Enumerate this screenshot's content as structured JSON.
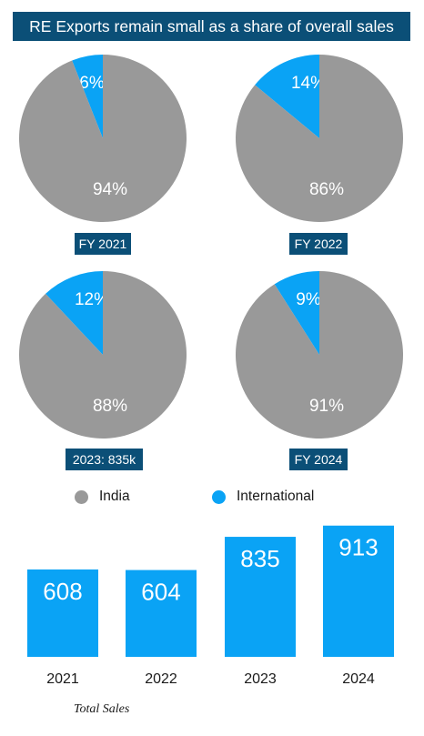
{
  "title": "RE Exports remain small as a share of overall sales",
  "colors": {
    "india": "#999999",
    "international": "#0aa3f5",
    "label_bg": "#0b4f77"
  },
  "legend": [
    {
      "name": "India",
      "color": "#999999"
    },
    {
      "name": "International",
      "color": "#0aa3f5"
    }
  ],
  "chart_data": [
    {
      "type": "pie",
      "panels": [
        {
          "label": "FY 2021",
          "slices": [
            {
              "name": "International",
              "value": 6,
              "label": "6%"
            },
            {
              "name": "India",
              "value": 94,
              "label": "94%"
            }
          ]
        },
        {
          "label": "FY 2022",
          "slices": [
            {
              "name": "International",
              "value": 14,
              "label": "14%"
            },
            {
              "name": "India",
              "value": 86,
              "label": "86%"
            }
          ]
        },
        {
          "label": "2023: 835k",
          "slices": [
            {
              "name": "International",
              "value": 12,
              "label": "12%"
            },
            {
              "name": "India",
              "value": 88,
              "label": "88%"
            }
          ]
        },
        {
          "label": "FY 2024",
          "slices": [
            {
              "name": "International",
              "value": 9,
              "label": "9%"
            },
            {
              "name": "India",
              "value": 91,
              "label": "91%"
            }
          ]
        }
      ]
    },
    {
      "type": "bar",
      "categories": [
        "2021",
        "2022",
        "2023",
        "2024"
      ],
      "values": [
        608,
        604,
        835,
        913
      ],
      "xlabel": "Total Sales",
      "ylim": [
        0,
        1000
      ]
    }
  ]
}
